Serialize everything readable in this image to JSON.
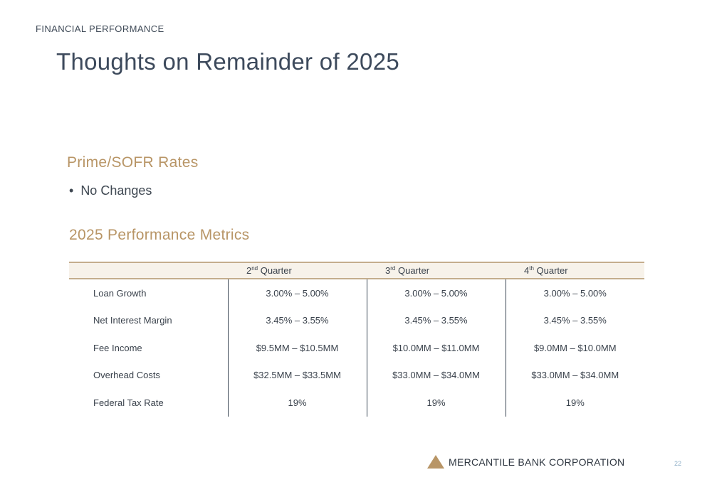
{
  "header": {
    "section": "FINANCIAL PERFORMANCE",
    "title": "Thoughts on Remainder of 2025"
  },
  "rates": {
    "heading": "Prime/SOFR Rates",
    "bullets": [
      "No Changes"
    ]
  },
  "metrics": {
    "heading": "2025 Performance Metrics",
    "columns": [
      {
        "num": "2",
        "sup": "nd",
        "label": "Quarter"
      },
      {
        "num": "3",
        "sup": "rd",
        "label": "Quarter"
      },
      {
        "num": "4",
        "sup": "th",
        "label": "Quarter"
      }
    ],
    "rows": [
      {
        "label": "Loan Growth",
        "values": [
          "3.00% – 5.00%",
          "3.00% – 5.00%",
          "3.00% – 5.00%"
        ]
      },
      {
        "label": "Net Interest Margin",
        "values": [
          "3.45% – 3.55%",
          "3.45% – 3.55%",
          "3.45% – 3.55%"
        ]
      },
      {
        "label": "Fee Income",
        "values": [
          "$9.5MM – $10.5MM",
          "$10.0MM – $11.0MM",
          "$9.0MM – $10.0MM"
        ]
      },
      {
        "label": "Overhead Costs",
        "values": [
          "$32.5MM – $33.5MM",
          "$33.0MM – $34.0MM",
          "$33.0MM – $34.0MM"
        ]
      },
      {
        "label": "Federal Tax Rate",
        "values": [
          "19%",
          "19%",
          "19%"
        ]
      }
    ]
  },
  "footer": {
    "brand": "MERCANTILE BANK CORPORATION",
    "logo_icon": "triangle-logo-icon",
    "page_number": "22"
  },
  "colors": {
    "accent_gold": "#b89566",
    "title_slate": "#3d4a5c",
    "header_fill": "#f7f2ea",
    "page_number": "#8fb0c8"
  }
}
